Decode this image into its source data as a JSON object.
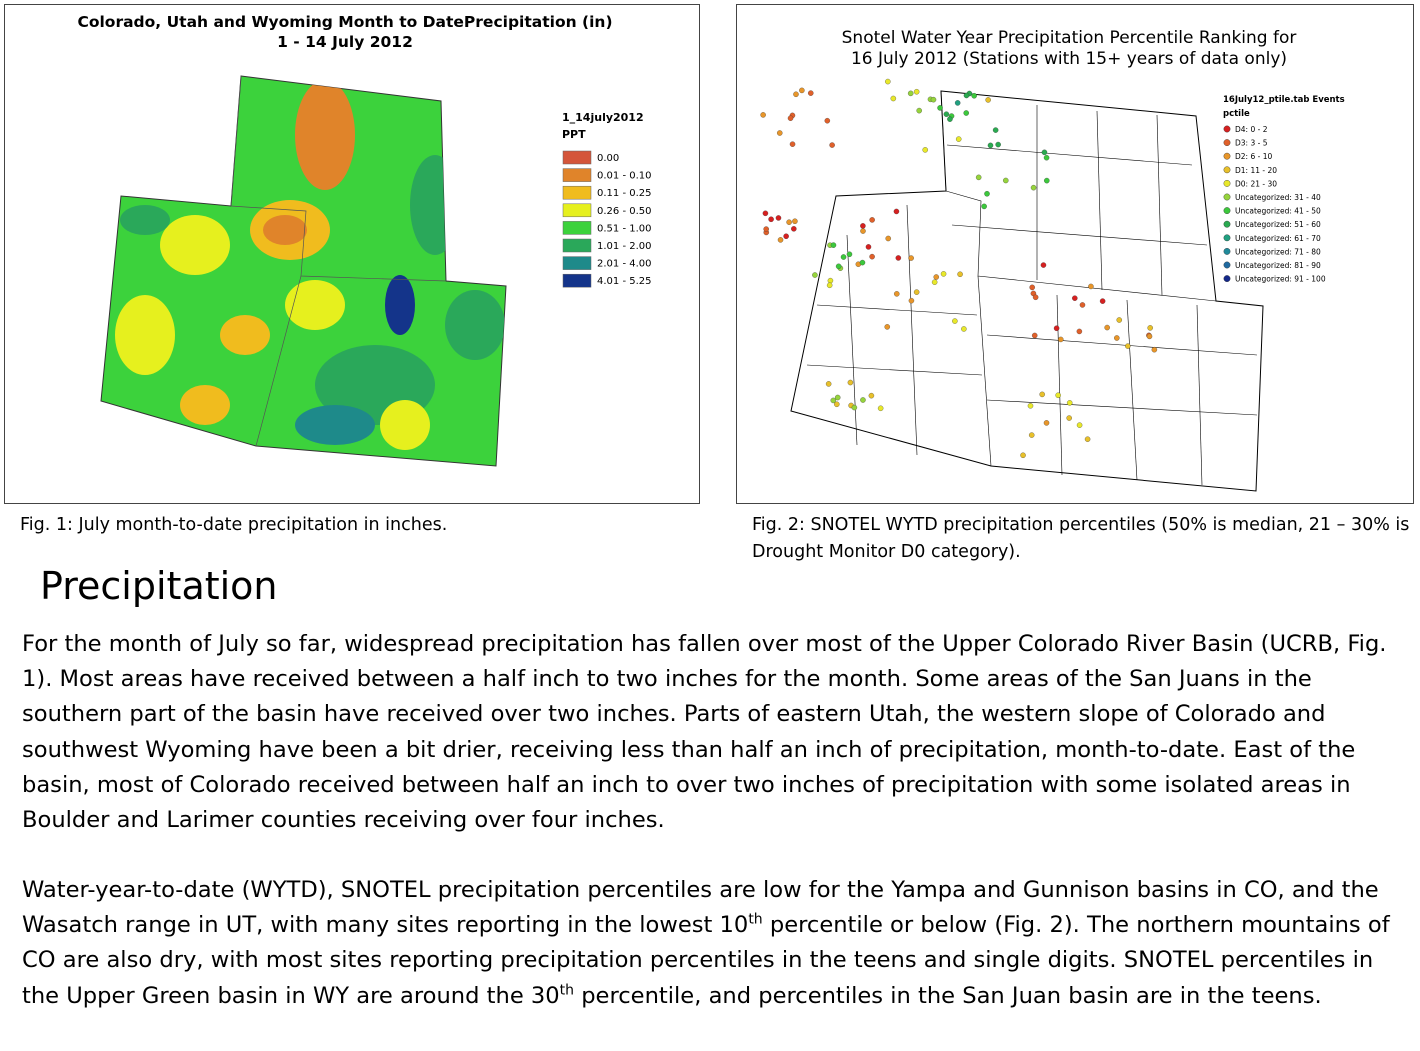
{
  "figure1": {
    "title_lines": [
      "Colorado, Utah and Wyoming Month to DatePrecipitation (in)",
      "1 - 14 July 2012"
    ],
    "legend": {
      "title": "1_14july2012",
      "subtitle": "PPT",
      "items": [
        {
          "label": "0.00",
          "color": "#d4553a"
        },
        {
          "label": "0.01 - 0.10",
          "color": "#e0842a"
        },
        {
          "label": "0.11 - 0.25",
          "color": "#f0bc1e"
        },
        {
          "label": "0.26 - 0.50",
          "color": "#e6f01e"
        },
        {
          "label": "0.51 - 1.00",
          "color": "#3cd23c"
        },
        {
          "label": "1.01 - 2.00",
          "color": "#2aa85a"
        },
        {
          "label": "2.01 - 4.00",
          "color": "#1e8a8a"
        },
        {
          "label": "4.01 - 5.25",
          "color": "#14348a"
        }
      ]
    },
    "caption": "Fig. 1:  July month-to-date precipitation in inches."
  },
  "figure2": {
    "title_lines": [
      "Snotel Water Year Precipitation Percentile Ranking for",
      "16 July 2012 (Stations with 15+ years of data only)"
    ],
    "legend": {
      "title": "16July12_ptile.tab Events",
      "subtitle": "pctile",
      "items": [
        {
          "label": "D4: 0 - 2",
          "color": "#d62020"
        },
        {
          "label": "D3: 3 - 5",
          "color": "#e0602a"
        },
        {
          "label": "D2: 6 - 10",
          "color": "#e8962a"
        },
        {
          "label": "D1: 11 - 20",
          "color": "#e8c02a"
        },
        {
          "label": "D0: 21 - 30",
          "color": "#e8e82a"
        },
        {
          "label": "Uncategorized: 31 - 40",
          "color": "#96d43c"
        },
        {
          "label": "Uncategorized: 41 - 50",
          "color": "#3cc83c"
        },
        {
          "label": "Uncategorized: 51 - 60",
          "color": "#2aaa50"
        },
        {
          "label": "Uncategorized: 61 - 70",
          "color": "#20a080"
        },
        {
          "label": "Uncategorized: 71 - 80",
          "color": "#208a9a"
        },
        {
          "label": "Uncategorized: 81 - 90",
          "color": "#206aa0"
        },
        {
          "label": "Uncategorized: 91 - 100",
          "color": "#14288a"
        }
      ]
    },
    "caption": "Fig. 2:  SNOTEL WYTD precipitation percentiles (50% is median, 21 – 30% is Drought Monitor D0 category)."
  },
  "section": {
    "heading": "Precipitation",
    "paragraph1": "For the month of July so far, widespread precipitation has fallen over most of the Upper Colorado River Basin (UCRB, Fig. 1).  Most areas have received between a half inch to two inches for the month.  Some areas of the San Juans in the southern part of the basin have received over two inches.  Parts of eastern Utah, the western slope of Colorado and southwest Wyoming have been a bit drier, receiving less than half an inch of precipitation, month-to-date.  East of the basin, most of Colorado received between half an inch to over two inches of precipitation with some isolated areas in Boulder and Larimer counties receiving over four inches.",
    "paragraph2": [
      "Water-year-to-date (WYTD), SNOTEL precipitation percentiles are low for the Yampa and Gunnison basins in CO, and the Wasatch range in UT, with many sites reporting in the lowest 10",
      "th",
      " percentile or below (Fig. 2). The northern mountains of CO are also dry, with most sites reporting precipitation percentiles in the teens and single digits.  SNOTEL percentiles in the Upper Green basin in WY are around the 30",
      "th",
      " percentile, and percentiles in the San Juan basin are in the teens."
    ]
  }
}
